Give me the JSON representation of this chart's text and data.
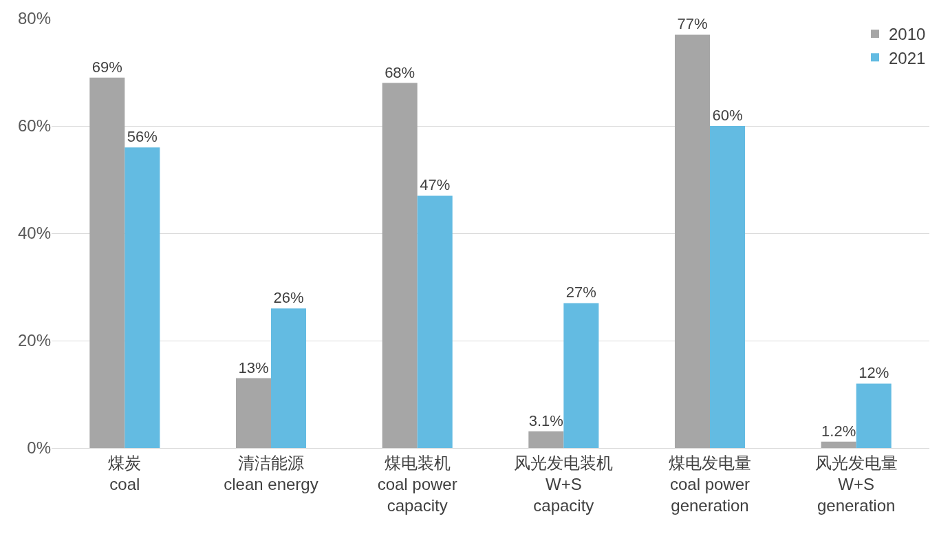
{
  "chart_data": {
    "type": "bar",
    "categories": [
      "煤炭\ncoal",
      "清洁能源\nclean energy",
      "煤电装机\ncoal power\ncapacity",
      "风光发电装机\nW+S\ncapacity",
      "煤电发电量\ncoal power\ngeneration",
      "风光发电量\nW+S\ngeneration"
    ],
    "series": [
      {
        "name": "2010",
        "color": "#a6a6a6",
        "values": [
          69,
          13,
          68,
          3.1,
          77,
          1.2
        ],
        "value_labels": [
          "69%",
          "13%",
          "68%",
          "3.1%",
          "77%",
          "1.2%"
        ]
      },
      {
        "name": "2021",
        "color": "#63bbe2",
        "values": [
          56,
          26,
          47,
          27,
          60,
          12
        ],
        "value_labels": [
          "56%",
          "26%",
          "47%",
          "27%",
          "60%",
          "12%"
        ]
      }
    ],
    "ylim": [
      0,
      80
    ],
    "yticks": [
      {
        "value": 0,
        "label": "0%"
      },
      {
        "value": 20,
        "label": "20%"
      },
      {
        "value": 40,
        "label": "40%"
      },
      {
        "value": 60,
        "label": "60%"
      },
      {
        "value": 80,
        "label": "80%"
      }
    ],
    "grid": "y",
    "legend": "top right"
  }
}
